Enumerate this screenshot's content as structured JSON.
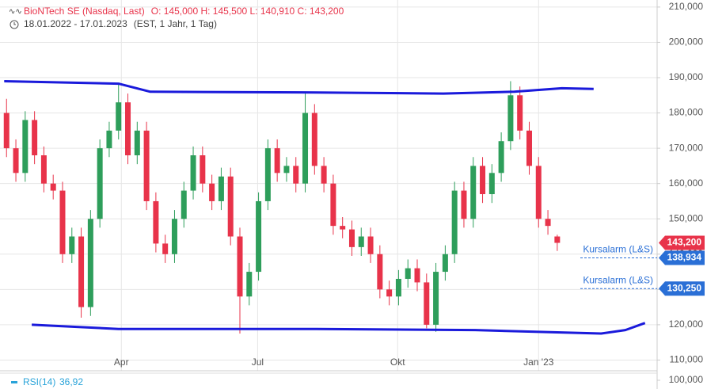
{
  "chart_data": {
    "type": "candlestick",
    "title": "BioNTech SE (Nasdaq, Last)",
    "ohlc_text": "O: 145,000  H: 145,500  L: 140,910  C: 143,200",
    "date_range": "18.01.2022 - 17.01.2023",
    "settings_text": "(EST, 1 Jahr, 1 Tag)",
    "indicator": {
      "name": "RSI(14)",
      "value": 36.92,
      "label": "36,92"
    },
    "up_color": "#2e9e5b",
    "down_color": "#e8334a",
    "open": [
      180000,
      170000,
      163000,
      178000,
      168000,
      160000,
      158000,
      140000,
      145000,
      125000,
      150000,
      170000,
      175000,
      183000,
      168000,
      175000,
      155000,
      143000,
      140000,
      150000,
      158000,
      168000,
      160000,
      155000,
      162000,
      145000,
      128000,
      135000,
      155000,
      170000,
      163000,
      165000,
      160000,
      180000,
      165000,
      160000,
      148000,
      147000,
      142000,
      145000,
      140000,
      130000,
      128000,
      133000,
      136000,
      132000,
      120000,
      135000,
      140000,
      158000,
      150000,
      165000,
      157000,
      163000,
      172000,
      185000,
      175000,
      165000,
      150000,
      145000
    ],
    "high": [
      184000,
      172500,
      180500,
      180500,
      170500,
      162500,
      160500,
      147500,
      147500,
      152500,
      172500,
      177500,
      188500,
      185500,
      177500,
      177500,
      157500,
      145500,
      152500,
      160500,
      170500,
      170500,
      162500,
      164500,
      164500,
      147500,
      137500,
      157500,
      172500,
      172500,
      167500,
      167500,
      185500,
      182500,
      167500,
      162500,
      150500,
      149500,
      147500,
      147500,
      142500,
      132500,
      135500,
      138500,
      138500,
      134500,
      137500,
      142500,
      160500,
      160500,
      167500,
      167500,
      165500,
      174500,
      189000,
      187500,
      177500,
      167500,
      152500,
      145500
    ],
    "low": [
      167500,
      160500,
      160500,
      165500,
      157500,
      155500,
      137500,
      137500,
      122000,
      122500,
      147500,
      167500,
      172500,
      165500,
      165500,
      152500,
      140500,
      137500,
      137500,
      147500,
      155500,
      157500,
      152500,
      152500,
      142500,
      117500,
      125500,
      132500,
      152500,
      160500,
      160500,
      157500,
      157500,
      162500,
      157500,
      145500,
      144500,
      139500,
      139500,
      137500,
      127500,
      125500,
      125500,
      130500,
      129500,
      119000,
      118000,
      132500,
      137500,
      147500,
      147500,
      154500,
      154500,
      160500,
      169500,
      172500,
      162500,
      147500,
      145500,
      140910
    ],
    "close": [
      170000,
      163000,
      178000,
      168000,
      160000,
      158000,
      140000,
      145000,
      125000,
      150000,
      170000,
      175000,
      183000,
      168000,
      175000,
      155000,
      143000,
      140000,
      150000,
      158000,
      168000,
      160000,
      155000,
      162000,
      145000,
      128000,
      135000,
      155000,
      170000,
      163000,
      165000,
      160000,
      180000,
      165000,
      160000,
      148000,
      147000,
      142000,
      145000,
      140000,
      130000,
      128000,
      133000,
      136000,
      132000,
      120000,
      135000,
      140000,
      158000,
      150000,
      165000,
      157000,
      163000,
      172000,
      185000,
      175000,
      165000,
      150000,
      148000,
      143200
    ],
    "bands": [
      {
        "color": "#1a1adb",
        "x": [
          -0.25,
          12.0,
          15.4,
          33.2,
          46.8,
          54.4,
          59.5,
          62.9
        ],
        "values": [
          189000,
          188300,
          186000,
          185800,
          185500,
          186000,
          187000,
          186800
        ]
      },
      {
        "color": "#1a1adb",
        "x": [
          2.7,
          12.0,
          33.2,
          50.2,
          63.7,
          66.3,
          68.4
        ],
        "values": [
          120000,
          118800,
          118800,
          118500,
          117500,
          118500,
          120500
        ]
      }
    ],
    "last_price": {
      "value": 143200,
      "label": "143,200"
    },
    "alarms": [
      {
        "label": "Kursalarm (L&S)",
        "value": 138934,
        "value_label": "138,934"
      },
      {
        "label": "Kursalarm (L&S)",
        "value": 130250,
        "value_label": "130,250"
      }
    ],
    "xlim": [
      -0.7,
      69.7
    ],
    "xticks": [
      {
        "value": 12.3,
        "label": "Apr"
      },
      {
        "value": 26.9,
        "label": "Jul"
      },
      {
        "value": 41.9,
        "label": "Okt"
      },
      {
        "value": 57.0,
        "label": "Jan '23"
      }
    ],
    "ylim": [
      100000,
      210000
    ],
    "yticks": [
      {
        "value": 100000,
        "label": "100,000"
      },
      {
        "value": 110000,
        "label": "110,000"
      },
      {
        "value": 120000,
        "label": "120,000"
      },
      {
        "value": 130000,
        "label": "130,000"
      },
      {
        "value": 140000,
        "label": "140,000"
      },
      {
        "value": 150000,
        "label": "150,000"
      },
      {
        "value": 160000,
        "label": "160,000"
      },
      {
        "value": 170000,
        "label": "170,000"
      },
      {
        "value": 180000,
        "label": "180,000"
      },
      {
        "value": 190000,
        "label": "190,000"
      },
      {
        "value": 200000,
        "label": "200,000"
      },
      {
        "value": 210000,
        "label": "210,000"
      }
    ],
    "grid": true
  }
}
